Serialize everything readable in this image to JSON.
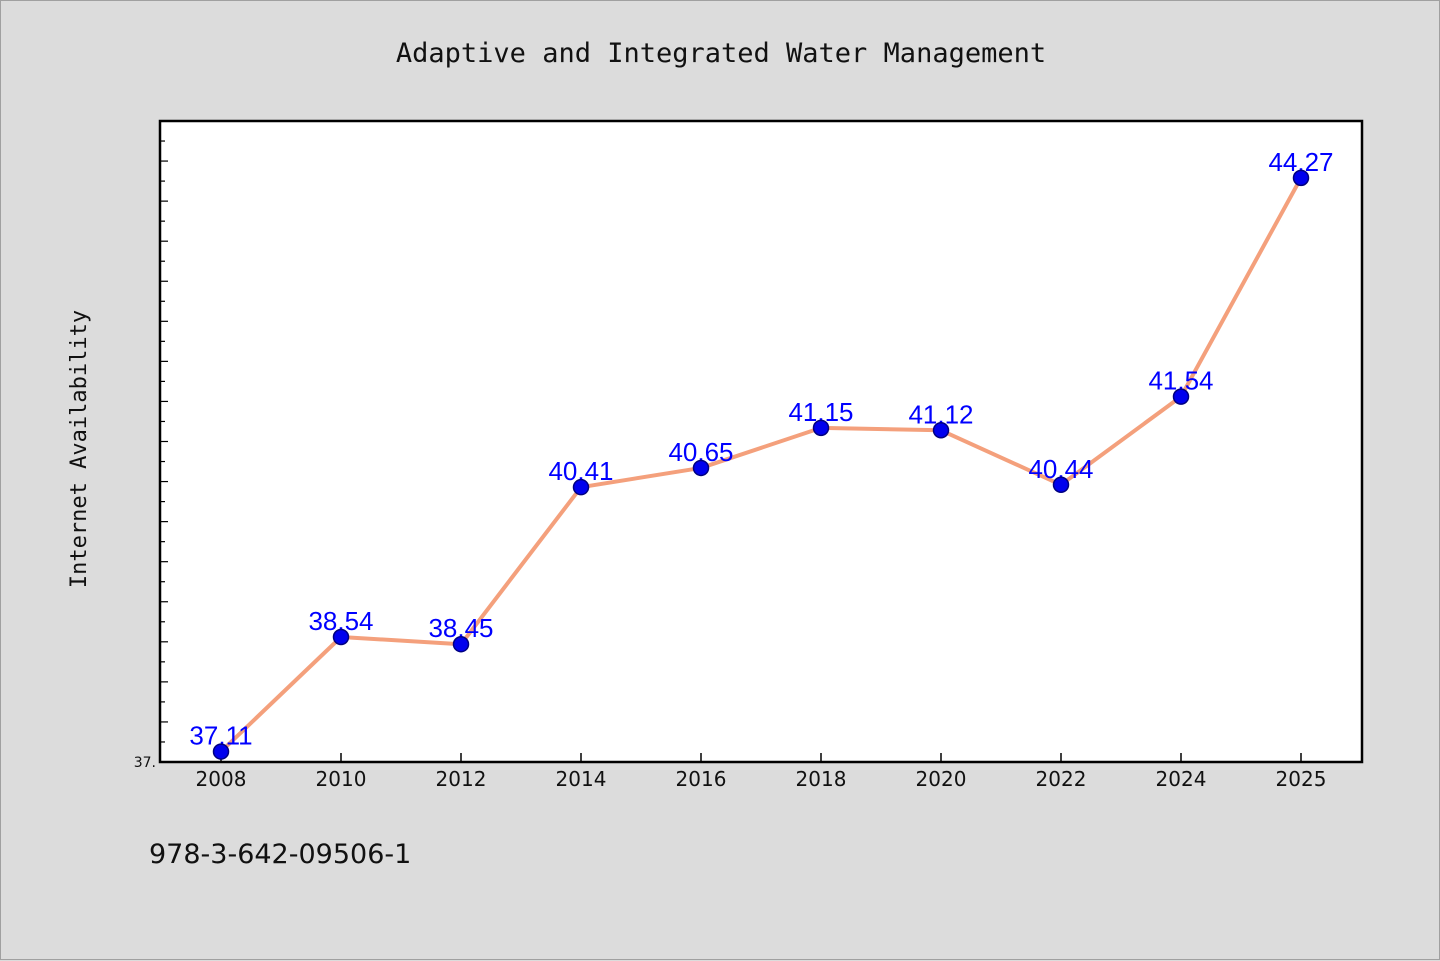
{
  "chart_data": {
    "type": "line",
    "title": "Adaptive and Integrated Water Management",
    "xlabel": "",
    "ylabel": "Internet Availability",
    "categories": [
      "2008",
      "2010",
      "2012",
      "2014",
      "2016",
      "2018",
      "2020",
      "2022",
      "2024",
      "2025"
    ],
    "series": [
      {
        "values": [
          37.11,
          38.54,
          38.45,
          40.41,
          40.65,
          41.15,
          41.12,
          40.44,
          41.54,
          44.27
        ],
        "labels": [
          "37.11",
          "38.54",
          "38.45",
          "40.41",
          "40.65",
          "41.15",
          "41.12",
          "40.44",
          "41.54",
          "44.27"
        ]
      }
    ],
    "ylim": [
      36.98,
      44.98
    ],
    "y_tick_labels": [
      {
        "value": 36.98,
        "text": "37."
      }
    ],
    "grid": false,
    "legend": "none",
    "colors": {
      "line": "#f4a07c",
      "marker": "#0000ee",
      "marker_edge": "#000080",
      "data_label": "#0000ff"
    }
  },
  "footnote": "978-3-642-09506-1"
}
